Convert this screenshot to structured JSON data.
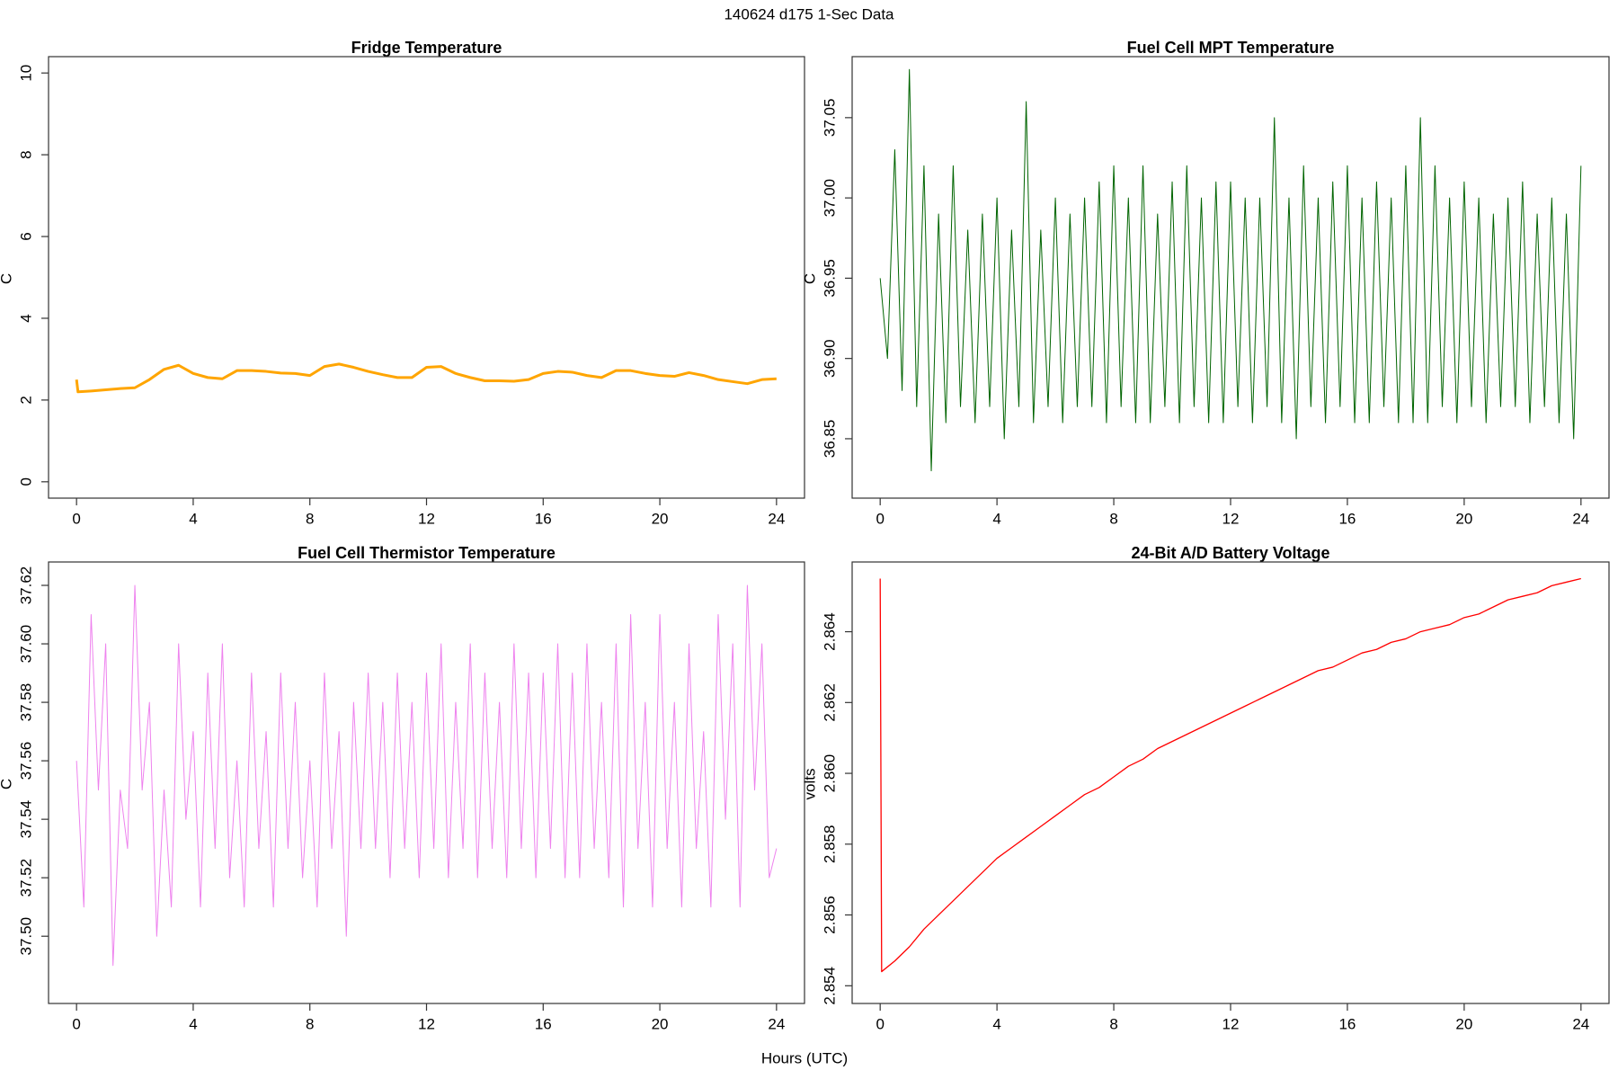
{
  "title": "140624   d175   1-Sec Data",
  "xlabel": "Hours (UTC)",
  "chart_data": [
    {
      "type": "line",
      "title": "Fridge Temperature",
      "ylabel": "C",
      "color": "#ffa500",
      "xlim": [
        -0.96,
        24.96
      ],
      "xticks": [
        0,
        4,
        8,
        12,
        16,
        20,
        24
      ],
      "ylim": [
        -0.4,
        10.4
      ],
      "yticks": [
        0,
        2,
        4,
        6,
        8,
        10
      ],
      "x": [
        0,
        0.05,
        0.5,
        1,
        1.5,
        2,
        2.5,
        3,
        3.5,
        4,
        4.5,
        5,
        5.5,
        6,
        6.5,
        7,
        7.5,
        8,
        8.5,
        9,
        9.5,
        10,
        10.5,
        11,
        11.5,
        12,
        12.5,
        13,
        13.5,
        14,
        14.5,
        15,
        15.5,
        16,
        16.5,
        17,
        17.5,
        18,
        18.5,
        19,
        19.5,
        20,
        20.5,
        21,
        21.5,
        22,
        22.5,
        23,
        23.5,
        24
      ],
      "values": [
        2.5,
        2.2,
        2.22,
        2.25,
        2.28,
        2.3,
        2.5,
        2.75,
        2.85,
        2.65,
        2.55,
        2.52,
        2.72,
        2.72,
        2.7,
        2.66,
        2.65,
        2.6,
        2.82,
        2.88,
        2.8,
        2.7,
        2.62,
        2.55,
        2.55,
        2.8,
        2.82,
        2.65,
        2.55,
        2.47,
        2.47,
        2.46,
        2.5,
        2.65,
        2.7,
        2.68,
        2.6,
        2.55,
        2.72,
        2.72,
        2.65,
        2.6,
        2.58,
        2.67,
        2.6,
        2.5,
        2.45,
        2.4,
        2.5,
        2.52
      ]
    },
    {
      "type": "line",
      "title": "Fuel Cell MPT Temperature",
      "ylabel": "C",
      "color": "#006400",
      "xlim": [
        -0.96,
        24.96
      ],
      "xticks": [
        0,
        4,
        8,
        12,
        16,
        20,
        24
      ],
      "ylim": [
        36.813,
        37.088
      ],
      "yticks": [
        36.85,
        {
          "value": 36.9,
          "label": "36.90"
        },
        36.95,
        {
          "value": 37.0,
          "label": "37.00"
        },
        37.05
      ],
      "x": [
        0,
        0.25,
        0.5,
        0.75,
        1,
        1.25,
        1.5,
        1.75,
        2,
        2.25,
        2.5,
        2.75,
        3,
        3.25,
        3.5,
        3.75,
        4,
        4.25,
        4.5,
        4.75,
        5,
        5.25,
        5.5,
        5.75,
        6,
        6.25,
        6.5,
        6.75,
        7,
        7.25,
        7.5,
        7.75,
        8,
        8.25,
        8.5,
        8.75,
        9,
        9.25,
        9.5,
        9.75,
        10,
        10.25,
        10.5,
        10.75,
        11,
        11.25,
        11.5,
        11.75,
        12,
        12.25,
        12.5,
        12.75,
        13,
        13.25,
        13.5,
        13.75,
        14,
        14.25,
        14.5,
        14.75,
        15,
        15.25,
        15.5,
        15.75,
        16,
        16.25,
        16.5,
        16.75,
        17,
        17.25,
        17.5,
        17.75,
        18,
        18.25,
        18.5,
        18.75,
        19,
        19.25,
        19.5,
        19.75,
        20,
        20.25,
        20.5,
        20.75,
        21,
        21.25,
        21.5,
        21.75,
        22,
        22.25,
        22.5,
        22.75,
        23,
        23.25,
        23.5,
        23.75,
        24
      ],
      "values": [
        36.95,
        36.9,
        37.03,
        36.88,
        37.08,
        36.87,
        37.02,
        36.83,
        36.99,
        36.86,
        37.02,
        36.87,
        36.98,
        36.86,
        36.99,
        36.87,
        37.0,
        36.85,
        36.98,
        36.87,
        37.06,
        36.86,
        36.98,
        36.87,
        37.0,
        36.86,
        36.99,
        36.87,
        37.0,
        36.87,
        37.01,
        36.86,
        37.02,
        36.87,
        37.0,
        36.86,
        37.02,
        36.86,
        36.99,
        36.87,
        37.01,
        36.86,
        37.02,
        36.87,
        37.0,
        36.86,
        37.01,
        36.86,
        37.01,
        36.87,
        37.0,
        36.86,
        37.0,
        36.87,
        37.05,
        36.86,
        37.0,
        36.85,
        37.02,
        36.87,
        37.0,
        36.86,
        37.01,
        36.87,
        37.02,
        36.86,
        37.0,
        36.86,
        37.01,
        36.87,
        37.0,
        36.86,
        37.02,
        36.86,
        37.05,
        36.86,
        37.02,
        36.87,
        37.0,
        36.86,
        37.01,
        36.87,
        37.0,
        36.86,
        36.99,
        36.87,
        37.0,
        36.87,
        37.01,
        36.86,
        36.99,
        36.87,
        37.0,
        36.86,
        36.99,
        36.85,
        37.02
      ]
    },
    {
      "type": "line",
      "title": "Fuel Cell Thermistor Temperature",
      "ylabel": "C",
      "color": "#ee82ee",
      "xlim": [
        -0.96,
        24.96
      ],
      "xticks": [
        0,
        4,
        8,
        12,
        16,
        20,
        24
      ],
      "ylim": [
        37.477,
        37.628
      ],
      "yticks": [
        {
          "value": 37.5,
          "label": "37.50"
        },
        37.52,
        37.54,
        37.56,
        37.58,
        {
          "value": 37.6,
          "label": "37.60"
        },
        37.62
      ],
      "x": [
        0,
        0.25,
        0.5,
        0.75,
        1,
        1.25,
        1.5,
        1.75,
        2,
        2.25,
        2.5,
        2.75,
        3,
        3.25,
        3.5,
        3.75,
        4,
        4.25,
        4.5,
        4.75,
        5,
        5.25,
        5.5,
        5.75,
        6,
        6.25,
        6.5,
        6.75,
        7,
        7.25,
        7.5,
        7.75,
        8,
        8.25,
        8.5,
        8.75,
        9,
        9.25,
        9.5,
        9.75,
        10,
        10.25,
        10.5,
        10.75,
        11,
        11.25,
        11.5,
        11.75,
        12,
        12.25,
        12.5,
        12.75,
        13,
        13.25,
        13.5,
        13.75,
        14,
        14.25,
        14.5,
        14.75,
        15,
        15.25,
        15.5,
        15.75,
        16,
        16.25,
        16.5,
        16.75,
        17,
        17.25,
        17.5,
        17.75,
        18,
        18.25,
        18.5,
        18.75,
        19,
        19.25,
        19.5,
        19.75,
        20,
        20.25,
        20.5,
        20.75,
        21,
        21.25,
        21.5,
        21.75,
        22,
        22.25,
        22.5,
        22.75,
        23,
        23.25,
        23.5,
        23.75,
        24
      ],
      "values": [
        37.56,
        37.51,
        37.61,
        37.55,
        37.6,
        37.49,
        37.55,
        37.53,
        37.62,
        37.55,
        37.58,
        37.5,
        37.55,
        37.51,
        37.6,
        37.54,
        37.57,
        37.51,
        37.59,
        37.53,
        37.6,
        37.52,
        37.56,
        37.51,
        37.59,
        37.53,
        37.57,
        37.51,
        37.59,
        37.53,
        37.58,
        37.52,
        37.56,
        37.51,
        37.59,
        37.53,
        37.57,
        37.5,
        37.58,
        37.53,
        37.59,
        37.53,
        37.58,
        37.52,
        37.59,
        37.53,
        37.58,
        37.52,
        37.59,
        37.53,
        37.6,
        37.52,
        37.58,
        37.53,
        37.6,
        37.52,
        37.59,
        37.53,
        37.58,
        37.52,
        37.6,
        37.53,
        37.59,
        37.52,
        37.59,
        37.53,
        37.6,
        37.52,
        37.59,
        37.52,
        37.6,
        37.53,
        37.58,
        37.52,
        37.6,
        37.51,
        37.61,
        37.53,
        37.58,
        37.51,
        37.61,
        37.53,
        37.58,
        37.51,
        37.6,
        37.53,
        37.57,
        37.51,
        37.61,
        37.54,
        37.6,
        37.51,
        37.62,
        37.55,
        37.6,
        37.52,
        37.53
      ]
    },
    {
      "type": "line",
      "title": "24-Bit A/D Battery Voltage",
      "ylabel": "volts",
      "color": "#ff0000",
      "xlim": [
        -0.96,
        24.96
      ],
      "xticks": [
        0,
        4,
        8,
        12,
        16,
        20,
        24
      ],
      "ylim": [
        2.8535,
        2.86597
      ],
      "yticks": [
        2.854,
        2.856,
        2.858,
        {
          "value": 2.86,
          "label": "2.860"
        },
        2.862,
        2.864
      ],
      "x": [
        0,
        0.05,
        0.5,
        1,
        1.5,
        2,
        2.5,
        3,
        3.5,
        4,
        4.5,
        5,
        5.5,
        6,
        6.5,
        7,
        7.5,
        8,
        8.5,
        9,
        9.5,
        10,
        10.5,
        11,
        11.5,
        12,
        12.5,
        13,
        13.5,
        14,
        14.5,
        15,
        15.5,
        16,
        16.5,
        17,
        17.5,
        18,
        18.5,
        19,
        19.5,
        20,
        20.5,
        21,
        21.5,
        22,
        22.5,
        23,
        23.5,
        24
      ],
      "values": [
        2.8655,
        2.8544,
        2.8547,
        2.8551,
        2.8556,
        2.856,
        2.8564,
        2.8568,
        2.8572,
        2.8576,
        2.8579,
        2.8582,
        2.8585,
        2.8588,
        2.8591,
        2.8594,
        2.8596,
        2.8599,
        2.8602,
        2.8604,
        2.8607,
        2.8609,
        2.8611,
        2.8613,
        2.8615,
        2.8617,
        2.8619,
        2.8621,
        2.8623,
        2.8625,
        2.8627,
        2.8629,
        2.863,
        2.8632,
        2.8634,
        2.8635,
        2.8637,
        2.8638,
        2.864,
        2.8641,
        2.8642,
        2.8644,
        2.8645,
        2.8647,
        2.8649,
        2.865,
        2.8651,
        2.8653,
        2.8654,
        2.8655
      ]
    }
  ]
}
